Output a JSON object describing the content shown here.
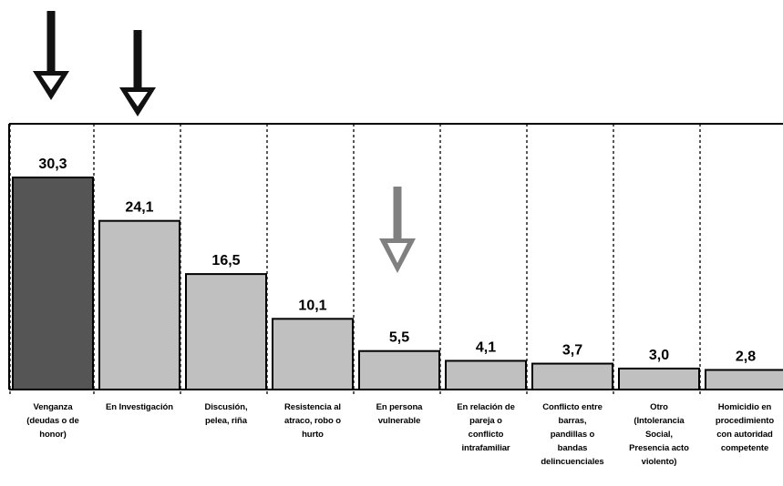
{
  "chart_data": {
    "type": "bar",
    "title": "",
    "xlabel": "",
    "ylabel": "",
    "ylim": [
      0,
      36
    ],
    "grid": "vertical dashed separators",
    "legend": "none",
    "categories": [
      "Venganza (deudas o de honor)",
      "En Investigación",
      "Discusión, pelea, riña",
      "Resistencia al atraco, robo o hurto",
      "En persona vulnerable",
      "En relación de pareja o conflicto intrafamiliar",
      "Conflicto entre barras, pandillas o bandas delincuenciales",
      "Otro (Intolerancia Social, Presencia acto violento)",
      "Homicidio en procedimiento con autoridad competente"
    ],
    "value_labels": [
      "30,3",
      "24,1",
      "16,5",
      "10,1",
      "5,5",
      "4,1",
      "3,7",
      "3,0",
      "2,8"
    ],
    "values": [
      30.3,
      24.1,
      16.5,
      10.1,
      5.5,
      4.1,
      3.7,
      3.0,
      2.8
    ],
    "bar_colors": [
      "#555555",
      "#c0c0c0",
      "#c0c0c0",
      "#c0c0c0",
      "#c0c0c0",
      "#c0c0c0",
      "#c0c0c0",
      "#c0c0c0",
      "#c0c0c0"
    ],
    "annotations": [
      {
        "type": "down-arrow",
        "category_index": 0,
        "color": "#111111"
      },
      {
        "type": "down-arrow",
        "category_index": 1,
        "color": "#111111"
      },
      {
        "type": "down-arrow",
        "category_index": 4,
        "color": "#808080"
      }
    ]
  },
  "category_label_lines": [
    [
      "Venganza",
      "(deudas o de",
      "honor)"
    ],
    [
      "En Investigación"
    ],
    [
      "Discusión,",
      "pelea, riña"
    ],
    [
      "Resistencia al",
      "atraco, robo o",
      "hurto"
    ],
    [
      "En persona",
      "vulnerable"
    ],
    [
      "En relación de",
      "pareja o",
      "conflicto",
      "intrafamiliar"
    ],
    [
      "Conflicto entre",
      "barras,",
      "pandillas o",
      "bandas",
      "delincuenciales"
    ],
    [
      "Otro",
      "(Intolerancia",
      "Social,",
      "Presencia acto",
      "violento)"
    ],
    [
      "Homicidio en",
      "procedimiento",
      "con autoridad",
      "competente"
    ]
  ]
}
